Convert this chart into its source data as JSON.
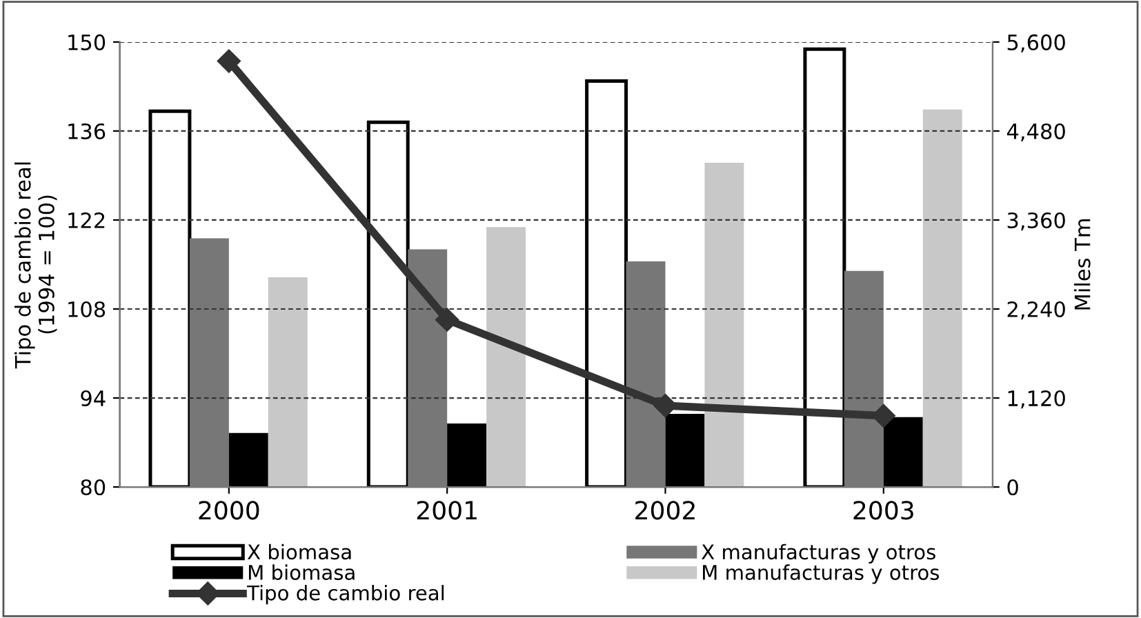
{
  "chart_data": {
    "type": "bar",
    "categories": [
      "2000",
      "2001",
      "2002",
      "2003"
    ],
    "ylabel": "Tipo de cambio real\n(1994 = 100)",
    "y2label": "Miles Tm",
    "ylim": [
      80,
      150
    ],
    "yticks": [
      80,
      94,
      108,
      122,
      136,
      150
    ],
    "y2lim": [
      0,
      5600
    ],
    "y2ticks": [
      0,
      {
        "value": 1120,
        "label": "1,120"
      },
      {
        "value": 2240,
        "label": "2,240"
      },
      {
        "value": 3360,
        "label": "3,360"
      },
      {
        "value": 4480,
        "label": "4,480"
      },
      {
        "value": 5600,
        "label": "5,600"
      }
    ],
    "grid": "y",
    "legend": "bottom",
    "series": [
      {
        "name": "X biomasa",
        "axis": "y2",
        "color": "#ffffff",
        "values": [
          4730,
          4590,
          5110,
          5510
        ]
      },
      {
        "name": "X manufacturas y otros",
        "axis": "y2",
        "color": "#777777",
        "values": [
          3130,
          2990,
          2840,
          2720
        ]
      },
      {
        "name": "M biomasa",
        "axis": "y2",
        "color": "#000000",
        "values": [
          680,
          800,
          920,
          880
        ]
      },
      {
        "name": "M manufacturas y otros",
        "axis": "y2",
        "color": "#c8c8c8",
        "values": [
          2640,
          3270,
          4080,
          4750
        ]
      },
      {
        "name": "Tipo de cambio real",
        "type": "line",
        "axis": "y",
        "color": "#333333",
        "marker": "diamond",
        "values": [
          147.0,
          106.3,
          92.8,
          91.2
        ]
      }
    ]
  }
}
